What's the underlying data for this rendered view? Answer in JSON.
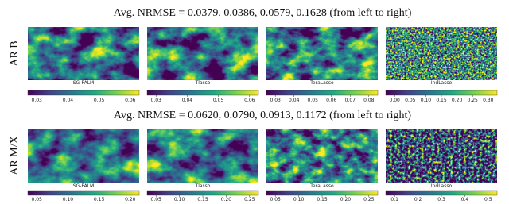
{
  "rows": [
    {
      "label": "AR B",
      "title": "Avg. NRMSE = 0.0379, 0.0386, 0.0579, 0.1628 (from left to right)",
      "panels": [
        {
          "label": "SG-PALM",
          "ticks": [
            "0.03",
            "0.04",
            "0.05",
            "0.06"
          ]
        },
        {
          "label": "Tlasso",
          "ticks": [
            "0.03",
            "0.04",
            "0.05",
            "0.06"
          ]
        },
        {
          "label": "TeraLasso",
          "ticks": [
            "0.03",
            "0.04",
            "0.05",
            "0.06",
            "0.07",
            "0.08"
          ]
        },
        {
          "label": "IndLasso",
          "ticks": [
            "0.00",
            "0.05",
            "0.10",
            "0.15",
            "0.20",
            "0.25",
            "0.30"
          ]
        }
      ]
    },
    {
      "label": "AR M/X",
      "title": "Avg. NRMSE = 0.0620, 0.0790, 0.0913, 0.1172 (from left to right)",
      "panels": [
        {
          "label": "SG-PALM",
          "ticks": [
            "0.05",
            "0.10",
            "0.15",
            "0.20"
          ]
        },
        {
          "label": "Tlasso",
          "ticks": [
            "0.05",
            "0.10",
            "0.15",
            "0.20",
            "0.25"
          ]
        },
        {
          "label": "TeraLasso",
          "ticks": [
            "0.05",
            "0.10",
            "0.15",
            "0.20",
            "0.25"
          ]
        },
        {
          "label": "IndLasso",
          "ticks": [
            "0.1",
            "0.2",
            "0.3",
            "0.4",
            "0.5"
          ]
        }
      ]
    }
  ]
}
